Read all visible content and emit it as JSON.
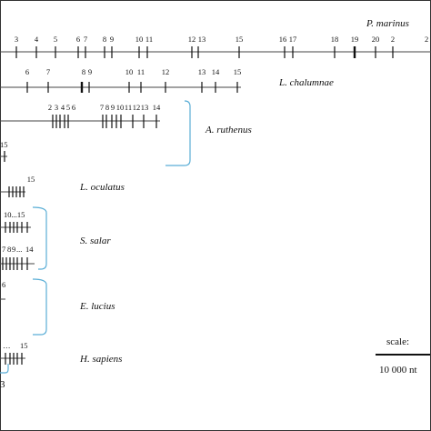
{
  "species": [
    {
      "name": "P. marinus",
      "exon_labels": [
        "3",
        "4",
        "5",
        "6",
        "7",
        "8",
        "9",
        "10",
        "11",
        "12",
        "13",
        "15",
        "16",
        "17",
        "18",
        "19",
        "20",
        "2"
      ]
    },
    {
      "name": "L. chalumnae",
      "exon_labels": [
        "6",
        "7",
        "8",
        "9",
        "10",
        "11",
        "12",
        "13",
        "14",
        "15"
      ]
    },
    {
      "name": "A. ruthenus",
      "exon_labels": [
        "2",
        "3",
        "4",
        "5",
        "6",
        "7",
        "8",
        "9",
        "10",
        "11",
        "12",
        "13",
        "14"
      ]
    },
    {
      "name": "L. oculatus",
      "exon_labels": [
        "15",
        "15"
      ]
    },
    {
      "name": "S. salar",
      "exon_labels": [
        "10...15",
        "7",
        "8",
        "9",
        "...",
        "14"
      ]
    },
    {
      "name": "E. lucius",
      "exon_labels": [
        "6"
      ]
    },
    {
      "name": "H. sapiens",
      "exon_labels": [
        "15",
        "3"
      ]
    }
  ],
  "scale": {
    "title": "scale:",
    "value": "10 000 nt"
  },
  "colors": {
    "bracket": "#5aaed6",
    "ink": "#111111"
  }
}
